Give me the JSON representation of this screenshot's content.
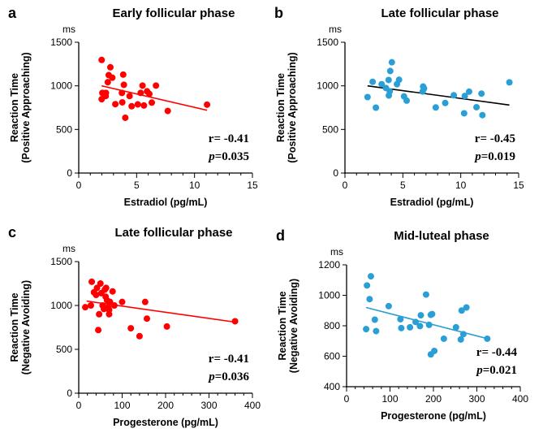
{
  "chart_data": [
    {
      "type": "scatter",
      "panel": "a",
      "title": "Early follicular phase",
      "xlabel": "Estradiol (pg/mL)",
      "ylabel": [
        "Reaction Time",
        "(Positive Approaching)"
      ],
      "yunit": "ms",
      "xlim": [
        0,
        15
      ],
      "ylim": [
        0,
        1500
      ],
      "xticks": [
        0,
        5,
        10,
        15
      ],
      "yticks": [
        0,
        500,
        1000,
        1500
      ],
      "color": "#ff0000",
      "stat_r": "r= -0.41",
      "stat_p_label": "p",
      "stat_p_value": "=0.035",
      "fit": [
        [
          1.98,
          1000
        ],
        [
          11.08,
          720
        ]
      ],
      "points": [
        [
          1.98,
          1297
        ],
        [
          2.73,
          1213
        ],
        [
          2.59,
          1123
        ],
        [
          2.9,
          1093
        ],
        [
          2.51,
          1042
        ],
        [
          3.84,
          1129
        ],
        [
          3.9,
          1012
        ],
        [
          2.04,
          919
        ],
        [
          2.35,
          919
        ],
        [
          2.33,
          883
        ],
        [
          1.98,
          847
        ],
        [
          3.16,
          790
        ],
        [
          3.73,
          919
        ],
        [
          3.76,
          811
        ],
        [
          4.39,
          883
        ],
        [
          4.57,
          766
        ],
        [
          5.1,
          787
        ],
        [
          5.35,
          919
        ],
        [
          5.51,
          1003
        ],
        [
          5.63,
          775
        ],
        [
          5.9,
          937
        ],
        [
          6.1,
          907
        ],
        [
          6.31,
          808
        ],
        [
          6.67,
          1003
        ],
        [
          7.69,
          712
        ],
        [
          4.02,
          634
        ],
        [
          11.08,
          784
        ],
        [
          2.22,
          898
        ]
      ]
    },
    {
      "type": "scatter",
      "panel": "b",
      "title": "Late follicular phase",
      "xlabel": "Estradiol (pg/mL)",
      "ylabel": [
        "Reaction Time",
        "(Positive Approaching)"
      ],
      "yunit": "ms",
      "xlim": [
        0,
        15
      ],
      "ylim": [
        0,
        1500
      ],
      "xticks": [
        0,
        5,
        10,
        15
      ],
      "yticks": [
        0,
        500,
        1000,
        1500
      ],
      "color": "#2a9fd6",
      "line_color": "#000000",
      "stat_r": "r= -0.45",
      "stat_p_label": "p",
      "stat_p_value": "=0.019",
      "fit": [
        [
          1.95,
          1000
        ],
        [
          14.2,
          780
        ]
      ],
      "points": [
        [
          1.95,
          871
        ],
        [
          2.39,
          1046
        ],
        [
          2.67,
          750
        ],
        [
          3.17,
          1019
        ],
        [
          3.54,
          975
        ],
        [
          3.77,
          1067
        ],
        [
          3.87,
          938
        ],
        [
          3.79,
          889
        ],
        [
          3.91,
          1170
        ],
        [
          4.05,
          1270
        ],
        [
          4.49,
          1019
        ],
        [
          4.67,
          1070
        ],
        [
          5.1,
          879
        ],
        [
          5.33,
          830
        ],
        [
          6.75,
          992
        ],
        [
          6.83,
          970
        ],
        [
          6.71,
          935
        ],
        [
          7.84,
          752
        ],
        [
          8.66,
          803
        ],
        [
          9.4,
          892
        ],
        [
          10.29,
          685
        ],
        [
          10.35,
          884
        ],
        [
          10.72,
          933
        ],
        [
          11.36,
          755
        ],
        [
          11.79,
          911
        ],
        [
          11.87,
          664
        ],
        [
          14.2,
          1040
        ]
      ]
    },
    {
      "type": "scatter",
      "panel": "c",
      "title": "Late follicular phase",
      "xlabel": "Progesterone (pg/mL)",
      "ylabel": [
        "Reaction Time",
        "(Negative Avoiding)"
      ],
      "yunit": "ms",
      "xlim": [
        0,
        400
      ],
      "ylim": [
        0,
        1500
      ],
      "xticks": [
        0,
        100,
        200,
        300,
        400
      ],
      "yticks": [
        0,
        500,
        1000,
        1500
      ],
      "color": "#ff0000",
      "stat_r": "r= -0.41",
      "stat_p_label": "p",
      "stat_p_value": "=0.036",
      "fit": [
        [
          18,
          1050
        ],
        [
          360,
          810
        ]
      ],
      "points": [
        [
          15,
          980
        ],
        [
          28,
          1000
        ],
        [
          30,
          1270
        ],
        [
          35,
          1150
        ],
        [
          40,
          1120
        ],
        [
          42,
          1200
        ],
        [
          45,
          720
        ],
        [
          47,
          900
        ],
        [
          50,
          1250
        ],
        [
          52,
          1140
        ],
        [
          55,
          1000
        ],
        [
          58,
          960
        ],
        [
          60,
          1180
        ],
        [
          62,
          1100
        ],
        [
          63,
          1200
        ],
        [
          65,
          1060
        ],
        [
          68,
          980
        ],
        [
          70,
          900
        ],
        [
          70,
          950
        ],
        [
          72,
          1040
        ],
        [
          78,
          1160
        ],
        [
          82,
          1000
        ],
        [
          100,
          1040
        ],
        [
          120,
          740
        ],
        [
          140,
          650
        ],
        [
          153,
          1040
        ],
        [
          157,
          850
        ],
        [
          203,
          760
        ],
        [
          360,
          820
        ]
      ]
    },
    {
      "type": "scatter",
      "panel": "d",
      "title": "Mid-luteal phase",
      "xlabel": "Progesterone (pg/mL)",
      "ylabel": [
        "Reaction Time",
        "(Negative Avoiding)"
      ],
      "yunit": "ms",
      "xlim": [
        0,
        400
      ],
      "ylim": [
        400,
        1200
      ],
      "xticks": [
        0,
        100,
        200,
        300,
        400
      ],
      "yticks": [
        400,
        600,
        800,
        1000,
        1200
      ],
      "color": "#2a9fd6",
      "stat_r": "r= -0.44",
      "stat_p_label": "p",
      "stat_p_value": "=0.021",
      "fit": [
        [
          45,
          920
        ],
        [
          325,
          715
        ]
      ],
      "points": [
        [
          45,
          778
        ],
        [
          47,
          1065
        ],
        [
          56,
          1125
        ],
        [
          53,
          975
        ],
        [
          65,
          840
        ],
        [
          68,
          765
        ],
        [
          97,
          929
        ],
        [
          124,
          843
        ],
        [
          126,
          785
        ],
        [
          146,
          790
        ],
        [
          159,
          825
        ],
        [
          169,
          798
        ],
        [
          171,
          869
        ],
        [
          183,
          1005
        ],
        [
          190,
          806
        ],
        [
          194,
          872
        ],
        [
          197,
          877
        ],
        [
          194,
          612
        ],
        [
          202,
          635
        ],
        [
          224,
          715
        ],
        [
          252,
          790
        ],
        [
          263,
          710
        ],
        [
          265,
          900
        ],
        [
          269,
          745
        ],
        [
          276,
          920
        ],
        [
          324,
          715
        ]
      ]
    }
  ]
}
